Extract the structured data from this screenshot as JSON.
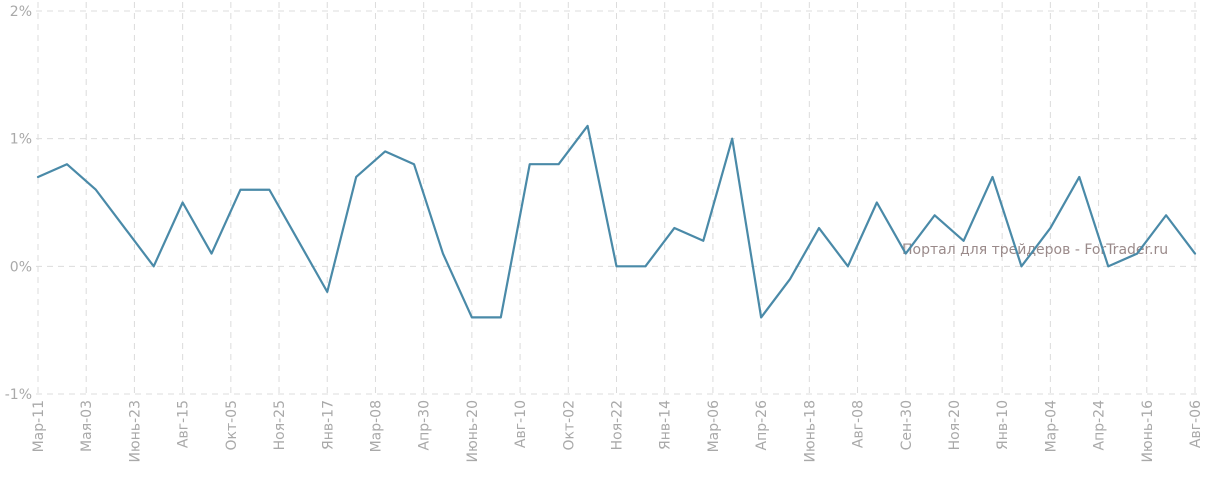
{
  "watermark": "Портал для трейдеров - ForTrader.ru",
  "colors": {
    "line": "#4a8aa8",
    "grid": "#dcdcdc",
    "tick_text": "#a9a9a9"
  },
  "chart_data": {
    "type": "line",
    "title": "",
    "xlabel": "",
    "ylabel": "",
    "ylim": [
      -1,
      2
    ],
    "yticks": [
      {
        "value": 2,
        "label": "2%"
      },
      {
        "value": 1,
        "label": "1%"
      },
      {
        "value": 0,
        "label": "0%"
      },
      {
        "value": -1,
        "label": "-1%"
      }
    ],
    "xticks": [
      {
        "index": 0,
        "label": "Мар-11"
      },
      {
        "index": 2,
        "label": "Мая-03"
      },
      {
        "index": 4,
        "label": "Июнь-23"
      },
      {
        "index": 6,
        "label": "Авг-15"
      },
      {
        "index": 8,
        "label": "Окт-05"
      },
      {
        "index": 10,
        "label": "Ноя-25"
      },
      {
        "index": 12,
        "label": "Янв-17"
      },
      {
        "index": 14,
        "label": "Мар-08"
      },
      {
        "index": 16,
        "label": "Апр-30"
      },
      {
        "index": 18,
        "label": "Июнь-20"
      },
      {
        "index": 20,
        "label": "Авг-10"
      },
      {
        "index": 22,
        "label": "Окт-02"
      },
      {
        "index": 24,
        "label": "Ноя-22"
      },
      {
        "index": 26,
        "label": "Янв-14"
      },
      {
        "index": 28,
        "label": "Мар-06"
      },
      {
        "index": 30,
        "label": "Апр-26"
      },
      {
        "index": 32,
        "label": "Июнь-18"
      },
      {
        "index": 34,
        "label": "Авг-08"
      },
      {
        "index": 36,
        "label": "Сен-30"
      },
      {
        "index": 38,
        "label": "Ноя-20"
      },
      {
        "index": 40,
        "label": "Янв-10"
      },
      {
        "index": 42,
        "label": "Мар-04"
      },
      {
        "index": 44,
        "label": "Апр-24"
      },
      {
        "index": 46,
        "label": "Июнь-16"
      },
      {
        "index": 48,
        "label": "Авг-06"
      }
    ],
    "grid": true,
    "series": [
      {
        "values": [
          0.7,
          0.8,
          0.6,
          0.3,
          0.0,
          0.5,
          0.1,
          0.6,
          0.6,
          0.2,
          -0.2,
          0.7,
          0.9,
          0.8,
          0.1,
          -0.4,
          -0.4,
          0.8,
          0.8,
          1.1,
          0.0,
          0.0,
          0.3,
          0.2,
          1.0,
          -0.4,
          -0.1,
          0.3,
          0.0,
          0.5,
          0.1,
          0.4,
          0.2,
          0.7,
          0.0,
          0.3,
          0.7,
          0.0,
          0.1,
          0.4,
          0.1
        ]
      }
    ]
  }
}
